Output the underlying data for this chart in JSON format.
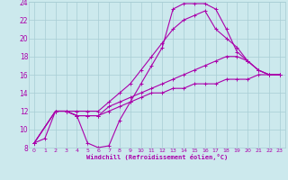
{
  "background_color": "#cce9ed",
  "grid_color": "#a8cdd4",
  "line_color": "#aa00aa",
  "xlabel": "Windchill (Refroidissement éolien,°C)",
  "xlim": [
    -0.5,
    23.5
  ],
  "ylim": [
    8,
    24
  ],
  "yticks": [
    8,
    10,
    12,
    14,
    16,
    18,
    20,
    22,
    24
  ],
  "xticks": [
    0,
    1,
    2,
    3,
    4,
    5,
    6,
    7,
    8,
    9,
    10,
    11,
    12,
    13,
    14,
    15,
    16,
    17,
    18,
    19,
    20,
    21,
    22,
    23
  ],
  "lines": [
    {
      "x": [
        0,
        1,
        2,
        3,
        4,
        5,
        6,
        7,
        8,
        9,
        10,
        11,
        12,
        13,
        14,
        15,
        16,
        17,
        18,
        19,
        20,
        21,
        22,
        23
      ],
      "y": [
        8.5,
        9.0,
        12.0,
        12.0,
        11.5,
        8.5,
        8.0,
        8.2,
        11.0,
        13.0,
        15.0,
        17.0,
        19.0,
        23.2,
        23.8,
        23.8,
        23.8,
        23.2,
        21.0,
        18.5,
        17.5,
        16.5,
        16.0,
        16.0
      ]
    },
    {
      "x": [
        0,
        2,
        3,
        4,
        5,
        6,
        7,
        8,
        9,
        10,
        11,
        12,
        13,
        14,
        15,
        16,
        17,
        18,
        19,
        20,
        21,
        22,
        23
      ],
      "y": [
        8.5,
        12.0,
        12.0,
        12.0,
        12.0,
        12.0,
        13.0,
        14.0,
        15.0,
        16.5,
        18.0,
        19.5,
        21.0,
        22.0,
        22.5,
        23.0,
        21.0,
        20.0,
        19.0,
        17.5,
        16.5,
        16.0,
        16.0
      ]
    },
    {
      "x": [
        0,
        2,
        3,
        4,
        5,
        6,
        7,
        8,
        9,
        10,
        11,
        12,
        13,
        14,
        15,
        16,
        17,
        18,
        19,
        20,
        21,
        22,
        23
      ],
      "y": [
        8.5,
        12.0,
        12.0,
        11.5,
        11.5,
        11.5,
        12.5,
        13.0,
        13.5,
        14.0,
        14.5,
        15.0,
        15.5,
        16.0,
        16.5,
        17.0,
        17.5,
        18.0,
        18.0,
        17.5,
        16.5,
        16.0,
        16.0
      ]
    },
    {
      "x": [
        0,
        2,
        3,
        4,
        5,
        6,
        7,
        8,
        9,
        10,
        11,
        12,
        13,
        14,
        15,
        16,
        17,
        18,
        19,
        20,
        21,
        22,
        23
      ],
      "y": [
        8.5,
        12.0,
        12.0,
        11.5,
        11.5,
        11.5,
        12.0,
        12.5,
        13.0,
        13.5,
        14.0,
        14.0,
        14.5,
        14.5,
        15.0,
        15.0,
        15.0,
        15.5,
        15.5,
        15.5,
        16.0,
        16.0,
        16.0
      ]
    }
  ]
}
